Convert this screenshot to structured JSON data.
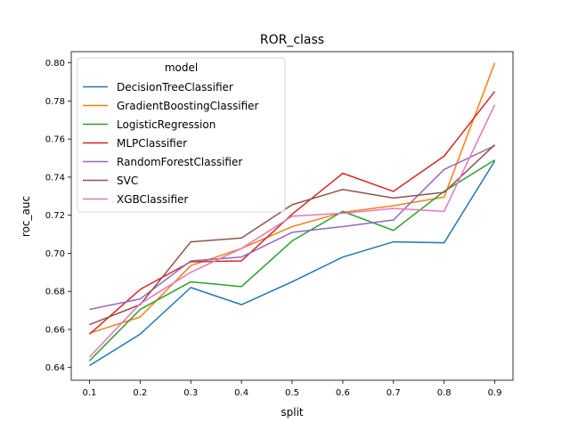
{
  "chart_data": {
    "type": "line",
    "title": "ROR_class",
    "xlabel": "split",
    "ylabel": "roc_auc",
    "x": [
      0.1,
      0.2,
      0.3,
      0.4,
      0.5,
      0.6,
      0.7,
      0.8,
      0.9
    ],
    "x_tick_labels": [
      "0.1",
      "0.2",
      "0.3",
      "0.4",
      "0.5",
      "0.6",
      "0.7",
      "0.8",
      "0.9"
    ],
    "y_ticks": [
      0.64,
      0.66,
      0.68,
      0.7,
      0.72,
      0.74,
      0.76,
      0.78,
      0.8
    ],
    "y_tick_labels": [
      "0.64",
      "0.66",
      "0.68",
      "0.70",
      "0.72",
      "0.74",
      "0.76",
      "0.78",
      "0.80"
    ],
    "xlim": [
      0.064,
      0.936
    ],
    "ylim": [
      0.6333,
      0.8059
    ],
    "grid": false,
    "legend_title": "model",
    "legend_position": "top-left",
    "series": [
      {
        "name": "DecisionTreeClassifier",
        "color": "#1f77b4",
        "values": [
          0.641,
          0.6575,
          0.682,
          0.673,
          0.685,
          0.698,
          0.706,
          0.7055,
          0.7485
        ]
      },
      {
        "name": "GradientBoostingClassifier",
        "color": "#ff7f0e",
        "values": [
          0.658,
          0.6665,
          0.6935,
          0.7025,
          0.714,
          0.7215,
          0.725,
          0.7295,
          0.8
        ]
      },
      {
        "name": "LogisticRegression",
        "color": "#2ca02c",
        "values": [
          0.6435,
          0.6705,
          0.685,
          0.6825,
          0.7065,
          0.722,
          0.712,
          0.7325,
          0.749
        ]
      },
      {
        "name": "MLPClassifier",
        "color": "#d62728",
        "values": [
          0.6575,
          0.681,
          0.6955,
          0.696,
          0.7205,
          0.742,
          0.7325,
          0.751,
          0.785
        ]
      },
      {
        "name": "RandomForestClassifier",
        "color": "#9467bd",
        "values": [
          0.6705,
          0.676,
          0.696,
          0.698,
          0.711,
          0.714,
          0.7175,
          0.744,
          0.7565
        ]
      },
      {
        "name": "SVC",
        "color": "#8c564b",
        "values": [
          0.6625,
          0.673,
          0.706,
          0.708,
          0.7255,
          0.7335,
          0.729,
          0.732,
          0.757
        ]
      },
      {
        "name": "XGBClassifier",
        "color": "#e377c2",
        "values": [
          0.6455,
          0.6735,
          0.69,
          0.7025,
          0.7195,
          0.721,
          0.7235,
          0.722,
          0.778
        ]
      }
    ]
  }
}
